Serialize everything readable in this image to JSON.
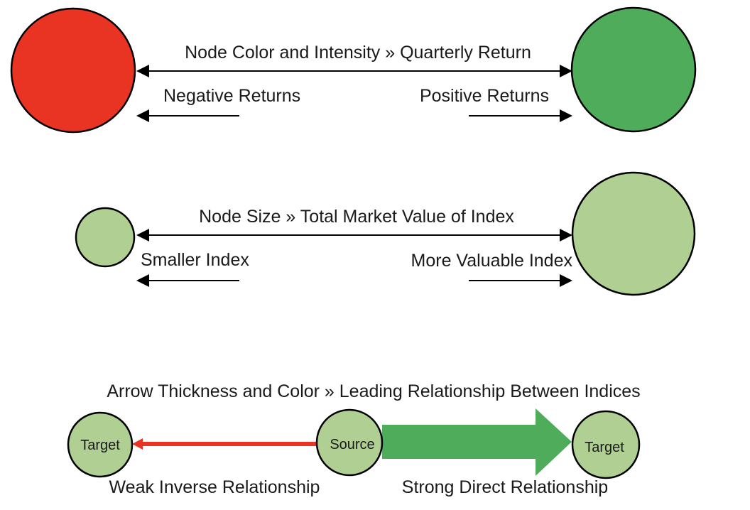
{
  "colors": {
    "negative": "#e93424",
    "positive": "#4eac5a",
    "node_neutral": "#b0cf92",
    "weak_arrow": "#e93424",
    "strong_arrow": "#4eac5a",
    "outline": "#000000",
    "text": "#1a1a1a"
  },
  "section_color": {
    "title": "Node Color and Intensity » Quarterly Return",
    "left_label": "Negative Returns",
    "right_label": "Positive Returns"
  },
  "section_size": {
    "title": "Node Size » Total Market Value of Index",
    "left_label": "Smaller Index",
    "right_label": "More Valuable Index"
  },
  "section_arrow": {
    "title": "Arrow Thickness and Color » Leading Relationship Between Indices",
    "source_label": "Source",
    "left_target_label": "Target",
    "right_target_label": "Target",
    "weak_label": "Weak Inverse Relationship",
    "strong_label": "Strong Direct Relationship"
  }
}
